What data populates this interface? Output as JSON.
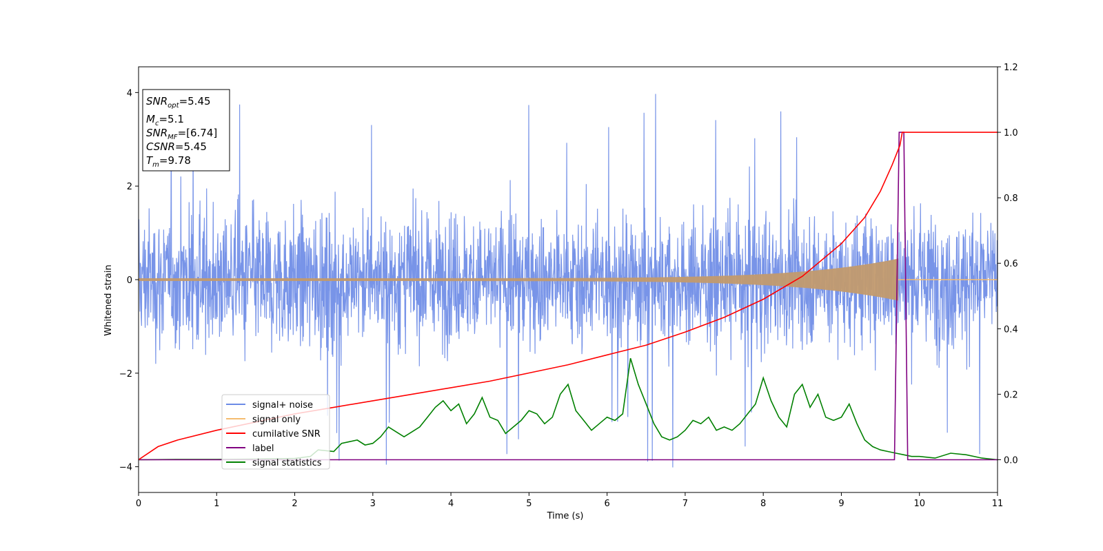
{
  "chart_data": {
    "type": "line",
    "xlabel": "Time (s)",
    "ylabel_left": "Whitened strain",
    "ylabel_right": "",
    "xlim": [
      0,
      11
    ],
    "ylim_left": [
      -4.55,
      4.55
    ],
    "ylim_right": [
      -0.1,
      1.2
    ],
    "x_ticks": [
      "0",
      "1",
      "2",
      "3",
      "4",
      "5",
      "6",
      "7",
      "8",
      "9",
      "10",
      "11"
    ],
    "y_left_ticks": [
      "−4",
      "−2",
      "0",
      "2",
      "4"
    ],
    "y_right_ticks": [
      "0.0",
      "0.2",
      "0.4",
      "0.6",
      "0.8",
      "1.0",
      "1.2"
    ],
    "grid": false,
    "legend_placement": "lower-left",
    "info_box": {
      "snr_opt": "5.45",
      "mc": "5.1",
      "snr_mf": "[6.74]",
      "csnr": "5.45",
      "tm": "9.78"
    },
    "merger_time": 9.78,
    "series": [
      {
        "name": "signal+ noise",
        "axis": "left",
        "color": "#6c8be6",
        "description_values": "noise with amplitude about ±2.5, spikes up to 4.1 and down to −4.2"
      },
      {
        "name": "signal only",
        "axis": "left",
        "color": "#f5bb6e",
        "description_values": "chirp growing from ±0.03 to ±0.45 at t=9.7"
      },
      {
        "name": "cumilative SNR",
        "axis": "right",
        "color": "#ff0000",
        "x": [
          0,
          0.25,
          0.5,
          1,
          1.5,
          2,
          2.5,
          3,
          3.5,
          4,
          4.5,
          5,
          5.5,
          6,
          6.5,
          7,
          7.5,
          8,
          8.5,
          9,
          9.3,
          9.5,
          9.65,
          9.75,
          9.78,
          10,
          11
        ],
        "y": [
          0.0,
          0.04,
          0.06,
          0.09,
          0.115,
          0.14,
          0.16,
          0.18,
          0.2,
          0.22,
          0.24,
          0.265,
          0.29,
          0.32,
          0.35,
          0.39,
          0.435,
          0.49,
          0.56,
          0.66,
          0.74,
          0.82,
          0.9,
          0.96,
          1.0,
          1.0,
          1.0
        ]
      },
      {
        "name": "label",
        "axis": "right",
        "color": "#800080",
        "x": [
          0,
          9.68,
          9.74,
          9.8,
          9.85,
          11
        ],
        "y": [
          0,
          0,
          1.0,
          1.0,
          0,
          0
        ]
      },
      {
        "name": "signal statistics",
        "axis": "right",
        "color": "#008000",
        "x": [
          0,
          0.5,
          1,
          1.5,
          2,
          2.2,
          2.3,
          2.5,
          2.6,
          2.7,
          2.8,
          2.9,
          3.0,
          3.1,
          3.2,
          3.3,
          3.4,
          3.5,
          3.6,
          3.7,
          3.8,
          3.9,
          4.0,
          4.1,
          4.2,
          4.3,
          4.4,
          4.5,
          4.6,
          4.7,
          4.8,
          4.9,
          5.0,
          5.1,
          5.2,
          5.3,
          5.4,
          5.5,
          5.6,
          5.7,
          5.8,
          5.9,
          6.0,
          6.1,
          6.2,
          6.3,
          6.4,
          6.5,
          6.6,
          6.7,
          6.8,
          6.9,
          7.0,
          7.1,
          7.2,
          7.3,
          7.4,
          7.5,
          7.6,
          7.7,
          7.8,
          7.9,
          8.0,
          8.1,
          8.2,
          8.3,
          8.4,
          8.5,
          8.6,
          8.7,
          8.8,
          8.9,
          9.0,
          9.1,
          9.2,
          9.3,
          9.4,
          9.5,
          9.6,
          9.7,
          9.8,
          9.9,
          10.0,
          10.2,
          10.4,
          10.6,
          10.8,
          11
        ],
        "y": [
          0.0,
          0.001,
          0.001,
          0.002,
          0.004,
          0.01,
          0.03,
          0.025,
          0.05,
          0.055,
          0.06,
          0.045,
          0.05,
          0.07,
          0.1,
          0.085,
          0.07,
          0.085,
          0.1,
          0.13,
          0.16,
          0.18,
          0.15,
          0.17,
          0.11,
          0.14,
          0.19,
          0.13,
          0.12,
          0.08,
          0.1,
          0.12,
          0.15,
          0.14,
          0.11,
          0.13,
          0.2,
          0.23,
          0.15,
          0.12,
          0.09,
          0.11,
          0.13,
          0.12,
          0.14,
          0.31,
          0.23,
          0.17,
          0.11,
          0.07,
          0.06,
          0.07,
          0.09,
          0.12,
          0.11,
          0.13,
          0.09,
          0.1,
          0.09,
          0.11,
          0.14,
          0.17,
          0.25,
          0.18,
          0.13,
          0.1,
          0.2,
          0.23,
          0.16,
          0.2,
          0.13,
          0.12,
          0.13,
          0.17,
          0.11,
          0.06,
          0.04,
          0.03,
          0.025,
          0.02,
          0.015,
          0.01,
          0.01,
          0.005,
          0.02,
          0.015,
          0.005,
          0.0
        ]
      }
    ]
  }
}
